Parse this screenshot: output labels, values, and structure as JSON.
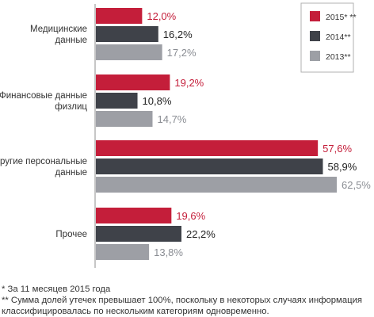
{
  "chart_data": {
    "type": "bar",
    "orientation": "horizontal",
    "categories": [
      [
        "Медицинские",
        "данные"
      ],
      [
        "Финансовые данные",
        "физлиц"
      ],
      [
        "Другие персональные",
        "данные"
      ],
      [
        "Прочее"
      ]
    ],
    "series": [
      {
        "name": "2015* **",
        "color": "#c41e3a",
        "label_color": "#c41e3a",
        "values": [
          12.0,
          19.2,
          57.6,
          19.6
        ],
        "labels": [
          "12,0%",
          "19,2%",
          "57,6%",
          "19,6%"
        ]
      },
      {
        "name": "2014**",
        "color": "#3f4249",
        "label_color": "#222222",
        "values": [
          16.2,
          10.8,
          58.9,
          22.2
        ],
        "labels": [
          "16,2%",
          "10,8%",
          "58,9%",
          "22,2%"
        ]
      },
      {
        "name": "2013**",
        "color": "#9d9fa5",
        "label_color": "#8a8d93",
        "values": [
          17.2,
          14.7,
          62.5,
          13.8
        ],
        "labels": [
          "17,2%",
          "14,7%",
          "62,5%",
          "13,8%"
        ]
      }
    ],
    "xlim": [
      0,
      62.5
    ],
    "legend": "top-right",
    "grid": false
  },
  "footnotes": [
    "* За 11 месяцев 2015 года",
    "** Сумма долей утечек превышает 100%, поскольку в некоторых случаях информация",
    "классифицировалась по нескольким категориям одновременно."
  ]
}
